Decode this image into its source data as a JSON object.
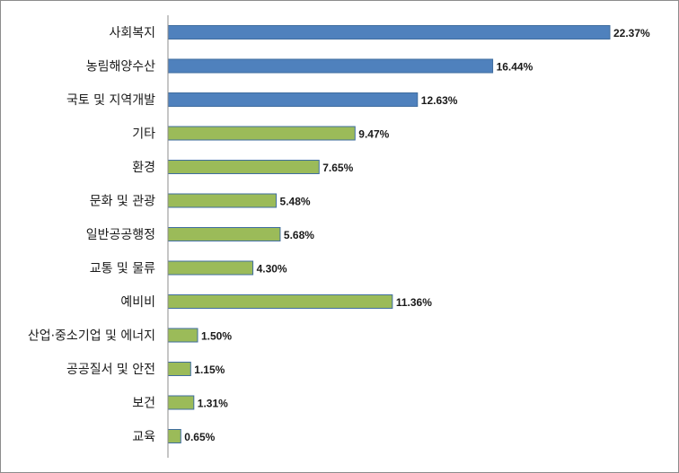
{
  "chart_data": {
    "type": "bar",
    "orientation": "horizontal",
    "categories": [
      "사회복지",
      "농림해양수산",
      "국토 및 지역개발",
      "기타",
      "환경",
      "문화 및 관광",
      "일반공공행정",
      "교통 및 물류",
      "예비비",
      "산업·중소기업 및 에너지",
      "공공질서 및 안전",
      "보건",
      "교육"
    ],
    "values": [
      22.37,
      16.44,
      12.63,
      9.47,
      7.65,
      5.48,
      5.68,
      4.3,
      11.36,
      1.5,
      1.15,
      1.31,
      0.65
    ],
    "value_labels": [
      "22.37%",
      "16.44%",
      "12.63%",
      "9.47%",
      "7.65%",
      "5.48%",
      "5.68%",
      "4.30%",
      "11.36%",
      "1.50%",
      "1.15%",
      "1.31%",
      "0.65%"
    ],
    "bar_colors": [
      "#4f81bd",
      "#4f81bd",
      "#4f81bd",
      "#9bbb59",
      "#9bbb59",
      "#9bbb59",
      "#9bbb59",
      "#9bbb59",
      "#9bbb59",
      "#9bbb59",
      "#9bbb59",
      "#9bbb59",
      "#9bbb59"
    ],
    "title": "",
    "xlabel": "",
    "ylabel": "",
    "xlim": [
      0,
      22.37
    ],
    "grid": false,
    "legend": "none"
  }
}
